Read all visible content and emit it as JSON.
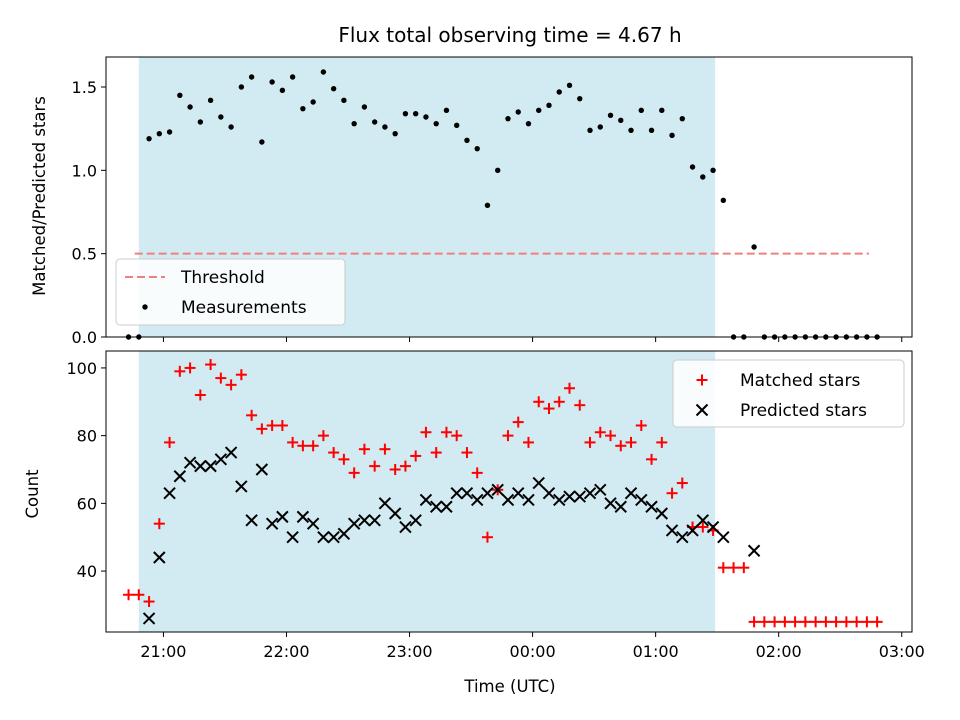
{
  "chart_data": {
    "type": "scatter",
    "title": "Flux total observing time = 4.67 h",
    "xlabel": "Time (UTC)",
    "x_ticks": [
      "21:00",
      "22:00",
      "23:00",
      "00:00",
      "01:00",
      "02:00",
      "03:00"
    ],
    "x_range": [
      "20:32",
      "03:05"
    ],
    "observing_window": [
      "20:48",
      "01:29"
    ],
    "observing_window_color": "#add8e6",
    "top_panel": {
      "ylabel": "Matched/Predicted stars",
      "ylim": [
        0,
        1.68
      ],
      "yticks": [
        "0.0",
        "0.5",
        "1.0",
        "1.5"
      ],
      "legend_position": "lower-left",
      "threshold": {
        "name": "Threshold",
        "value": 0.5,
        "x_start": "20:46",
        "x_end": "02:44",
        "color": "#f08080",
        "style": "dashed"
      },
      "measurements": {
        "name": "Measurements",
        "color": "#000000",
        "x": [
          "20:43",
          "20:48",
          "20:53",
          "20:58",
          "21:03",
          "21:08",
          "21:13",
          "21:18",
          "21:23",
          "21:28",
          "21:33",
          "21:38",
          "21:43",
          "21:48",
          "21:53",
          "21:58",
          "22:03",
          "22:08",
          "22:13",
          "22:18",
          "22:23",
          "22:28",
          "22:33",
          "22:38",
          "22:43",
          "22:48",
          "22:53",
          "22:58",
          "23:03",
          "23:08",
          "23:13",
          "23:18",
          "23:23",
          "23:28",
          "23:33",
          "23:38",
          "23:43",
          "23:48",
          "23:53",
          "23:58",
          "00:03",
          "00:08",
          "00:13",
          "00:18",
          "00:23",
          "00:28",
          "00:33",
          "00:38",
          "00:43",
          "00:48",
          "00:53",
          "00:58",
          "01:03",
          "01:08",
          "01:13",
          "01:18",
          "01:23",
          "01:28",
          "01:33",
          "01:38",
          "01:43",
          "01:48",
          "01:53",
          "01:58",
          "02:03",
          "02:08",
          "02:13",
          "02:18",
          "02:23",
          "02:28",
          "02:33",
          "02:38",
          "02:43",
          "02:48"
        ],
        "y": [
          0.0,
          0.0,
          1.19,
          1.22,
          1.23,
          1.45,
          1.38,
          1.29,
          1.42,
          1.32,
          1.26,
          1.5,
          1.56,
          1.17,
          1.53,
          1.48,
          1.56,
          1.37,
          1.41,
          1.59,
          1.49,
          1.42,
          1.28,
          1.38,
          1.29,
          1.26,
          1.22,
          1.34,
          1.34,
          1.32,
          1.28,
          1.36,
          1.27,
          1.18,
          1.13,
          0.79,
          1.0,
          1.31,
          1.35,
          1.28,
          1.36,
          1.39,
          1.47,
          1.51,
          1.43,
          1.24,
          1.26,
          1.33,
          1.3,
          1.24,
          1.36,
          1.24,
          1.36,
          1.21,
          1.31,
          1.02,
          0.96,
          1.0,
          0.82,
          0.0,
          0.0,
          0.54,
          0.0,
          0.0,
          0.0,
          0.0,
          0.0,
          0.0,
          0.0,
          0.0,
          0.0,
          0.0,
          0.0,
          0.0
        ]
      }
    },
    "bottom_panel": {
      "ylabel": "Count",
      "ylim": [
        22,
        105
      ],
      "yticks": [
        "40",
        "60",
        "80",
        "100"
      ],
      "legend_position": "upper-right",
      "x": [
        "20:43",
        "20:48",
        "20:53",
        "20:58",
        "21:03",
        "21:08",
        "21:13",
        "21:18",
        "21:23",
        "21:28",
        "21:33",
        "21:38",
        "21:43",
        "21:48",
        "21:53",
        "21:58",
        "22:03",
        "22:08",
        "22:13",
        "22:18",
        "22:23",
        "22:28",
        "22:33",
        "22:38",
        "22:43",
        "22:48",
        "22:53",
        "22:58",
        "23:03",
        "23:08",
        "23:13",
        "23:18",
        "23:23",
        "23:28",
        "23:33",
        "23:38",
        "23:43",
        "23:48",
        "23:53",
        "23:58",
        "00:03",
        "00:08",
        "00:13",
        "00:18",
        "00:23",
        "00:28",
        "00:33",
        "00:38",
        "00:43",
        "00:48",
        "00:53",
        "00:58",
        "01:03",
        "01:08",
        "01:13",
        "01:18",
        "01:23",
        "01:28",
        "01:33",
        "01:38",
        "01:43",
        "01:48",
        "01:53",
        "01:58",
        "02:03",
        "02:08",
        "02:13",
        "02:18",
        "02:23",
        "02:28",
        "02:33",
        "02:38",
        "02:43",
        "02:48"
      ],
      "series": [
        {
          "name": "Matched stars",
          "marker": "+",
          "color": "#ff0000",
          "values": [
            33,
            33,
            31,
            54,
            78,
            99,
            100,
            92,
            101,
            97,
            95,
            98,
            86,
            82,
            83,
            83,
            78,
            77,
            77,
            80,
            75,
            73,
            69,
            76,
            71,
            76,
            70,
            71,
            74,
            81,
            75,
            81,
            80,
            75,
            69,
            50,
            64,
            80,
            84,
            78,
            90,
            88,
            90,
            94,
            89,
            78,
            81,
            80,
            77,
            78,
            83,
            73,
            78,
            63,
            66,
            53,
            53,
            52,
            41,
            41,
            41,
            25,
            25,
            25,
            25,
            25,
            25,
            25,
            25,
            25,
            25,
            25,
            25,
            25
          ]
        },
        {
          "name": "Predicted stars",
          "marker": "x",
          "color": "#000000",
          "values": [
            null,
            null,
            26,
            44,
            63,
            68,
            72,
            71,
            71,
            73,
            75,
            65,
            55,
            70,
            54,
            56,
            50,
            56,
            54,
            50,
            50,
            51,
            54,
            55,
            55,
            60,
            57,
            53,
            55,
            61,
            59,
            59,
            63,
            63,
            61,
            63,
            64,
            61,
            63,
            61,
            66,
            63,
            61,
            62,
            62,
            63,
            64,
            60,
            59,
            63,
            61,
            59,
            57,
            52,
            50,
            52,
            55,
            53,
            50,
            null,
            null,
            46,
            null,
            null,
            null,
            null,
            null,
            null,
            null,
            null,
            null,
            null,
            null,
            null
          ]
        }
      ]
    }
  }
}
